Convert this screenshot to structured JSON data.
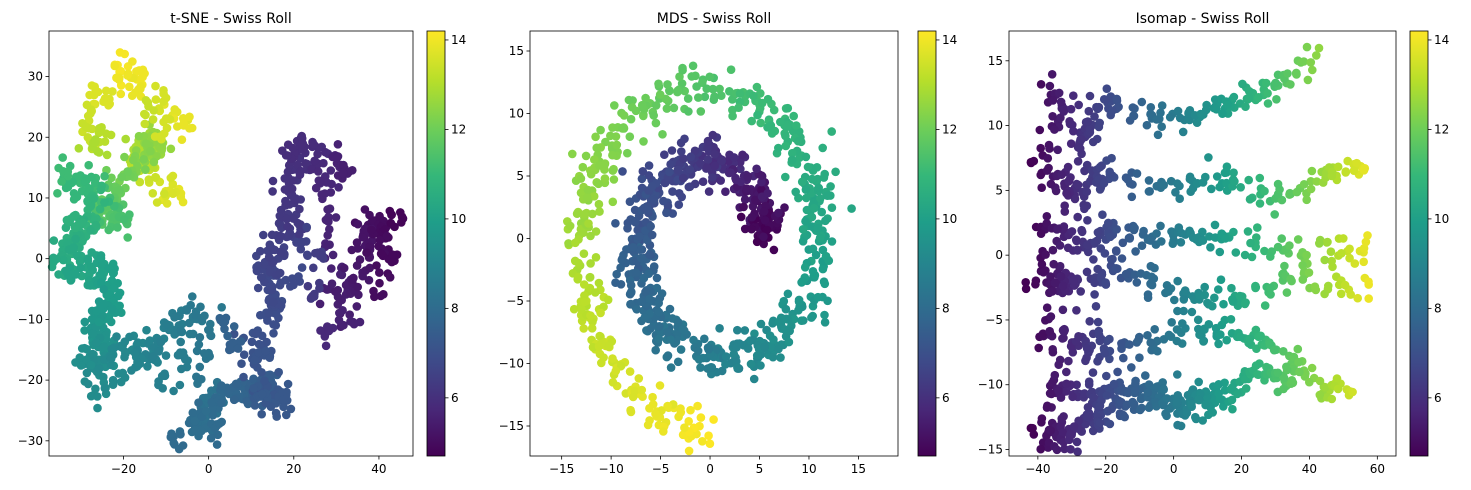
{
  "chart_data": [
    {
      "type": "scatter",
      "title": "t-SNE - Swiss Roll",
      "xlabel": "",
      "ylabel": "",
      "xlim": [
        -37.5,
        48
      ],
      "ylim": [
        -32.5,
        37.5
      ],
      "xticks": [
        -20,
        0,
        20,
        40
      ],
      "yticks": [
        -30,
        -20,
        -10,
        0,
        10,
        20,
        30
      ],
      "grid": false,
      "colormap": "viridis",
      "colorbar": {
        "range": [
          4.7,
          14.2
        ],
        "ticks": [
          6,
          8,
          10,
          12,
          14
        ]
      },
      "path": [
        [
          -6.0,
          9.5,
          13.9
        ],
        [
          -14.0,
          14.0,
          13.4
        ],
        [
          -16.5,
          18.0,
          13.0
        ],
        [
          -12.0,
          19.0,
          12.7
        ],
        [
          -15.0,
          17.0,
          12.4
        ],
        [
          -22.0,
          12.0,
          12.0
        ],
        [
          -25.0,
          8.0,
          11.7
        ],
        [
          -20.0,
          6.0,
          11.4
        ],
        [
          -30.0,
          14.0,
          11.1
        ],
        [
          -27.0,
          8.0,
          10.9
        ],
        [
          -30.0,
          4.0,
          10.7
        ],
        [
          -34.0,
          1.0,
          10.5
        ],
        [
          -28.0,
          -2.0,
          10.3
        ],
        [
          -24.0,
          -2.0,
          10.1
        ],
        [
          -22.0,
          -8.0,
          9.9
        ],
        [
          -28.0,
          -12.0,
          9.7
        ],
        [
          -24.0,
          -15.0,
          9.5
        ],
        [
          -28.0,
          -19.0,
          9.3
        ],
        [
          -18.0,
          -14.0,
          9.1
        ],
        [
          -12.0,
          -15.0,
          8.9
        ],
        [
          -8.0,
          -11.0,
          8.7
        ],
        [
          -2.0,
          -9.0,
          8.5
        ],
        [
          0.0,
          -24.0,
          8.3
        ],
        [
          -4.0,
          -29.0,
          8.1
        ],
        [
          4.0,
          -22.0,
          7.9
        ],
        [
          10.0,
          -22.0,
          7.7
        ],
        [
          14.0,
          -20.0,
          7.5
        ],
        [
          16.0,
          -25.0,
          7.3
        ],
        [
          10.0,
          -14.0,
          7.1
        ],
        [
          16.0,
          -8.0,
          6.9
        ],
        [
          12.0,
          -3.0,
          6.7
        ],
        [
          16.0,
          2.0,
          6.5
        ],
        [
          20.0,
          6.0,
          6.3
        ],
        [
          18.0,
          12.0,
          6.1
        ],
        [
          25.0,
          18.0,
          5.9
        ],
        [
          28.0,
          10.0,
          5.7
        ],
        [
          30.0,
          -8.0,
          5.5
        ],
        [
          36.0,
          -2.0,
          5.3
        ],
        [
          38.0,
          6.0,
          5.1
        ],
        [
          42.0,
          4.0,
          4.9
        ]
      ],
      "path_points": 1000,
      "jitter": [
        1.6,
        1.3
      ],
      "extras": [
        [
          -20.0,
          32.0,
          14.1
        ],
        [
          -16.0,
          30.0,
          14.0
        ],
        [
          -18.0,
          28.0,
          13.9
        ],
        [
          -20.0,
          30.0,
          14.0
        ],
        [
          -24.0,
          26.0,
          13.7
        ],
        [
          -26.0,
          27.0,
          13.7
        ],
        [
          -28.0,
          24.0,
          13.5
        ],
        [
          -28.0,
          20.0,
          13.4
        ],
        [
          -24.0,
          20.0,
          13.2
        ],
        [
          -26.0,
          18.0,
          13.0
        ],
        [
          -8.0,
          24.0,
          13.8
        ],
        [
          -6.0,
          22.0,
          13.9
        ],
        [
          -10.0,
          22.0,
          13.6
        ],
        [
          -12.0,
          26.0,
          13.6
        ],
        [
          -14.0,
          24.0,
          13.4
        ],
        [
          -32.0,
          12.0,
          11.0
        ],
        [
          -34.0,
          14.0,
          11.2
        ],
        [
          -32.0,
          6.0,
          10.8
        ],
        [
          -36.0,
          -1.0,
          10.4
        ],
        [
          -32.0,
          -3.0,
          10.2
        ],
        [
          -26.0,
          -8.0,
          9.8
        ],
        [
          -26.0,
          -22.0,
          9.3
        ],
        [
          -30.0,
          -16.0,
          9.4
        ],
        [
          -22.0,
          -20.0,
          9.2
        ],
        [
          -16.0,
          -18.0,
          9.0
        ],
        [
          -10.0,
          -20.0,
          8.8
        ],
        [
          -6.0,
          -17.0,
          8.7
        ],
        [
          -2.0,
          -28.0,
          8.1
        ],
        [
          2.0,
          -28.0,
          8.0
        ],
        [
          -8.0,
          -30.0,
          8.0
        ],
        [
          6.0,
          -14.0,
          7.6
        ],
        [
          4.0,
          -10.0,
          7.7
        ],
        [
          12.0,
          -24.0,
          7.4
        ],
        [
          18.0,
          -22.0,
          7.3
        ],
        [
          14.0,
          -16.0,
          7.2
        ],
        [
          20.0,
          -4.0,
          6.8
        ],
        [
          22.0,
          2.0,
          6.6
        ],
        [
          26.0,
          0.0,
          6.4
        ],
        [
          24.0,
          -6.0,
          6.3
        ],
        [
          28.0,
          -12.0,
          5.8
        ],
        [
          32.0,
          -10.0,
          5.6
        ],
        [
          30.0,
          16.0,
          5.6
        ],
        [
          32.0,
          14.0,
          5.5
        ],
        [
          22.0,
          19.0,
          5.9
        ],
        [
          20.0,
          18.0,
          5.9
        ],
        [
          36.0,
          4.0,
          5.2
        ],
        [
          40.0,
          2.0,
          5.0
        ],
        [
          42.0,
          0.0,
          4.9
        ],
        [
          40.0,
          -4.0,
          5.0
        ],
        [
          44.0,
          6.0,
          4.8
        ]
      ]
    },
    {
      "type": "scatter",
      "title": "MDS - Swiss Roll",
      "xlabel": "",
      "ylabel": "",
      "xlim": [
        -18.2,
        19.0
      ],
      "ylim": [
        -17.4,
        16.6
      ],
      "xticks": [
        -15,
        -10,
        -5,
        0,
        5,
        10,
        15
      ],
      "yticks": [
        -15,
        -10,
        -5,
        0,
        5,
        10,
        15
      ],
      "grid": false,
      "colormap": "viridis",
      "colorbar": {
        "range": [
          4.7,
          14.2
        ],
        "ticks": [
          6,
          8,
          10,
          12,
          14
        ]
      },
      "spiral": {
        "t_min": 4.7,
        "t_max": 14.2,
        "cx": 0.5,
        "cy": -0.2,
        "scale": 1.0,
        "noise": 1.8
      },
      "path_points": 1000
    },
    {
      "type": "scatter",
      "title": "Isomap - Swiss Roll",
      "xlabel": "",
      "ylabel": "",
      "xlim": [
        -48.5,
        65.5
      ],
      "ylim": [
        -15.5,
        17.3
      ],
      "xticks": [
        -40,
        -20,
        0,
        20,
        40,
        60
      ],
      "yticks": [
        -15,
        -10,
        -5,
        0,
        5,
        10,
        15
      ],
      "grid": false,
      "colormap": "viridis",
      "colorbar": {
        "range": [
          4.7,
          14.2
        ],
        "ticks": [
          6,
          8,
          10,
          12,
          14
        ]
      },
      "strands": [
        [
          [
            -37,
            13
          ],
          [
            -28,
            9
          ],
          [
            -20,
            12
          ],
          [
            -5,
            10
          ],
          [
            10,
            11
          ],
          [
            20,
            12
          ],
          [
            30,
            13
          ],
          [
            42,
            15.7
          ]
        ],
        [
          [
            -40,
            8
          ],
          [
            -30,
            5
          ],
          [
            -20,
            6
          ],
          [
            0,
            5
          ],
          [
            15,
            6
          ],
          [
            30,
            4
          ],
          [
            45,
            6
          ],
          [
            55,
            7
          ]
        ],
        [
          [
            -38,
            2
          ],
          [
            -25,
            1
          ],
          [
            -10,
            1.5
          ],
          [
            5,
            2
          ],
          [
            20,
            1
          ],
          [
            40,
            0
          ],
          [
            58,
            0.5
          ]
        ],
        [
          [
            -41,
            -2
          ],
          [
            -30,
            -2
          ],
          [
            -15,
            -1
          ],
          [
            0,
            -3
          ],
          [
            15,
            -3.5
          ],
          [
            35,
            -2
          ],
          [
            58,
            -3
          ]
        ],
        [
          [
            -39,
            -6
          ],
          [
            -25,
            -7
          ],
          [
            -10,
            -7
          ],
          [
            5,
            -6
          ],
          [
            20,
            -6
          ],
          [
            30,
            -7
          ],
          [
            42,
            -10
          ],
          [
            52,
            -10.5
          ]
        ],
        [
          [
            -38,
            -10
          ],
          [
            -25,
            -11
          ],
          [
            -10,
            -10
          ],
          [
            5,
            -11
          ],
          [
            15,
            -11
          ],
          [
            25,
            -9
          ],
          [
            35,
            -10
          ]
        ],
        [
          [
            -40,
            -14
          ],
          [
            -30,
            -14
          ],
          [
            -20,
            -12
          ],
          [
            -10,
            -11
          ],
          [
            0,
            -12
          ],
          [
            10,
            -11.5
          ]
        ]
      ],
      "strand_points": 140,
      "jitter": [
        1.6,
        0.55
      ],
      "x_range": [
        -42,
        60
      ]
    }
  ],
  "colormap_stops": [
    "#440154",
    "#482878",
    "#3e4a89",
    "#31688e",
    "#26828e",
    "#1f9e89",
    "#35b779",
    "#6ece58",
    "#b5de2b",
    "#fde725"
  ]
}
